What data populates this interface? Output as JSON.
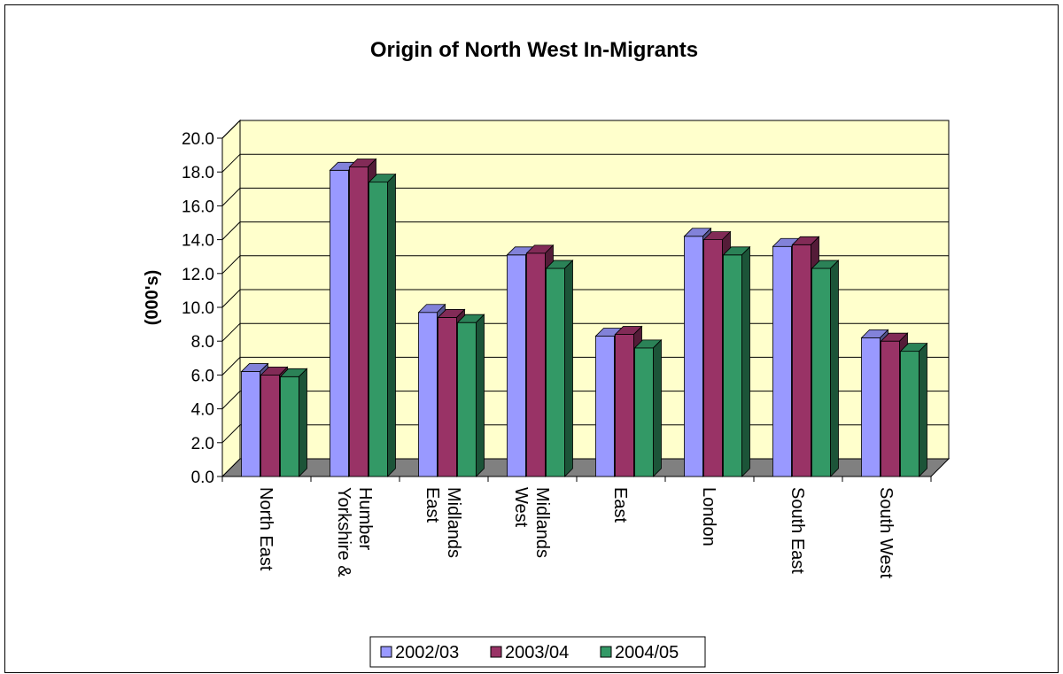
{
  "chart_data": {
    "type": "bar",
    "title": "Origin of North West In-Migrants",
    "ylabel": "(000's)",
    "xlabel": "",
    "ylim": [
      0,
      20
    ],
    "yticks": [
      "0.0",
      "2.0",
      "4.0",
      "6.0",
      "8.0",
      "10.0",
      "12.0",
      "14.0",
      "16.0",
      "18.0",
      "20.0"
    ],
    "categories": [
      [
        "North East"
      ],
      [
        "Yorkshire &",
        "Humber"
      ],
      [
        "East",
        "Midlands"
      ],
      [
        "West",
        "Midlands"
      ],
      [
        "East"
      ],
      [
        "London"
      ],
      [
        "South East"
      ],
      [
        "South West"
      ]
    ],
    "series": [
      {
        "name": "2002/03",
        "color": "#9999ff",
        "values": [
          6.2,
          18.1,
          9.7,
          13.1,
          8.3,
          14.2,
          13.6,
          8.2
        ]
      },
      {
        "name": "2003/04",
        "color": "#993366",
        "values": [
          6.0,
          18.3,
          9.4,
          13.2,
          8.4,
          14.0,
          13.7,
          8.0
        ]
      },
      {
        "name": "2004/05",
        "color": "#339966",
        "values": [
          5.9,
          17.4,
          9.1,
          12.3,
          7.6,
          13.1,
          12.3,
          7.4
        ]
      }
    ],
    "grid": true,
    "legend_position": "bottom",
    "plot_background": "#ffffcc",
    "floor_color": "#808080"
  }
}
